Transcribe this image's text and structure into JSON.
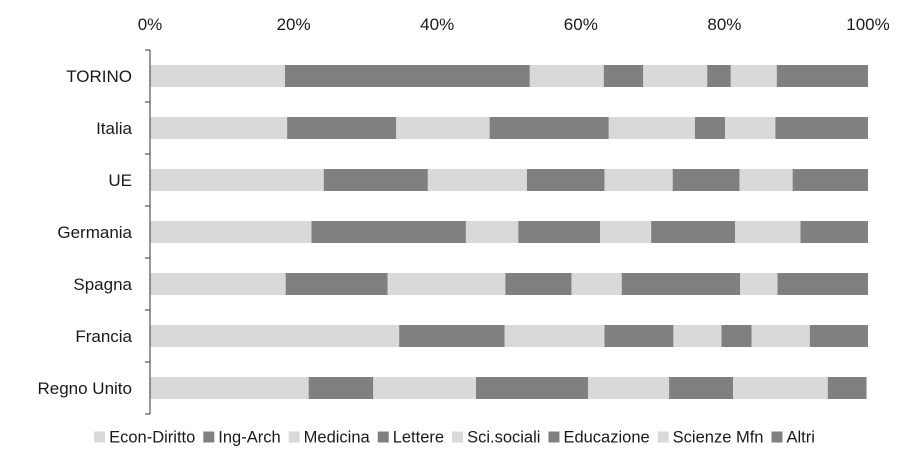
{
  "chart_data": {
    "type": "bar",
    "orientation": "horizontal",
    "stacking": "percent",
    "xlim": [
      0,
      100
    ],
    "x_ticks": [
      "0%",
      "20%",
      "40%",
      "60%",
      "80%",
      "100%"
    ],
    "x_tick_values": [
      0,
      20,
      40,
      60,
      80,
      100
    ],
    "x_axis_position": "top",
    "grid": false,
    "legend_position": "bottom",
    "categories": [
      "TORINO",
      "Italia",
      "UE",
      "Germania",
      "Spagna",
      "Francia",
      "Regno Unito"
    ],
    "series": [
      {
        "name": "Econ-Diritto",
        "color": "#d9d9d9",
        "values": [
          18.8,
          19.1,
          24.2,
          22.5,
          18.9,
          34.7,
          22.1
        ]
      },
      {
        "name": "Ing-Arch",
        "color": "#808080",
        "values": [
          34.1,
          15.2,
          14.5,
          21.5,
          14.2,
          14.7,
          9.0
        ]
      },
      {
        "name": "Medicina",
        "color": "#d9d9d9",
        "values": [
          10.3,
          13.0,
          13.8,
          7.3,
          16.4,
          13.9,
          14.3
        ]
      },
      {
        "name": "Lettere",
        "color": "#808080",
        "values": [
          5.5,
          16.6,
          10.8,
          11.4,
          9.2,
          9.6,
          15.6
        ]
      },
      {
        "name": "Sci.sociali",
        "color": "#d9d9d9",
        "values": [
          8.9,
          12.0,
          9.5,
          7.1,
          7.0,
          6.7,
          11.3
        ]
      },
      {
        "name": "Educazione",
        "color": "#808080",
        "values": [
          3.3,
          4.2,
          9.3,
          11.7,
          16.5,
          4.2,
          8.9
        ]
      },
      {
        "name": "Scienze Mfn",
        "color": "#d9d9d9",
        "values": [
          6.4,
          7.0,
          7.4,
          9.1,
          5.2,
          8.1,
          13.2
        ]
      },
      {
        "name": "Altri",
        "color": "#808080",
        "values": [
          12.7,
          12.9,
          10.5,
          9.4,
          12.6,
          8.1,
          5.4
        ]
      }
    ]
  }
}
